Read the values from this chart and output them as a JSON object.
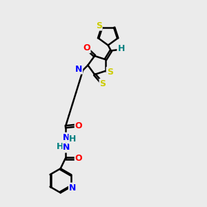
{
  "background_color": "#ebebeb",
  "bond_color": "#000000",
  "atom_colors": {
    "S": "#cccc00",
    "N": "#0000ff",
    "O": "#ff0000",
    "H": "#008080",
    "C": "#000000"
  },
  "bond_width": 1.8,
  "figsize": [
    3.0,
    3.0
  ],
  "dpi": 100,
  "xlim": [
    0.0,
    8.0
  ],
  "ylim": [
    0.0,
    10.5
  ]
}
